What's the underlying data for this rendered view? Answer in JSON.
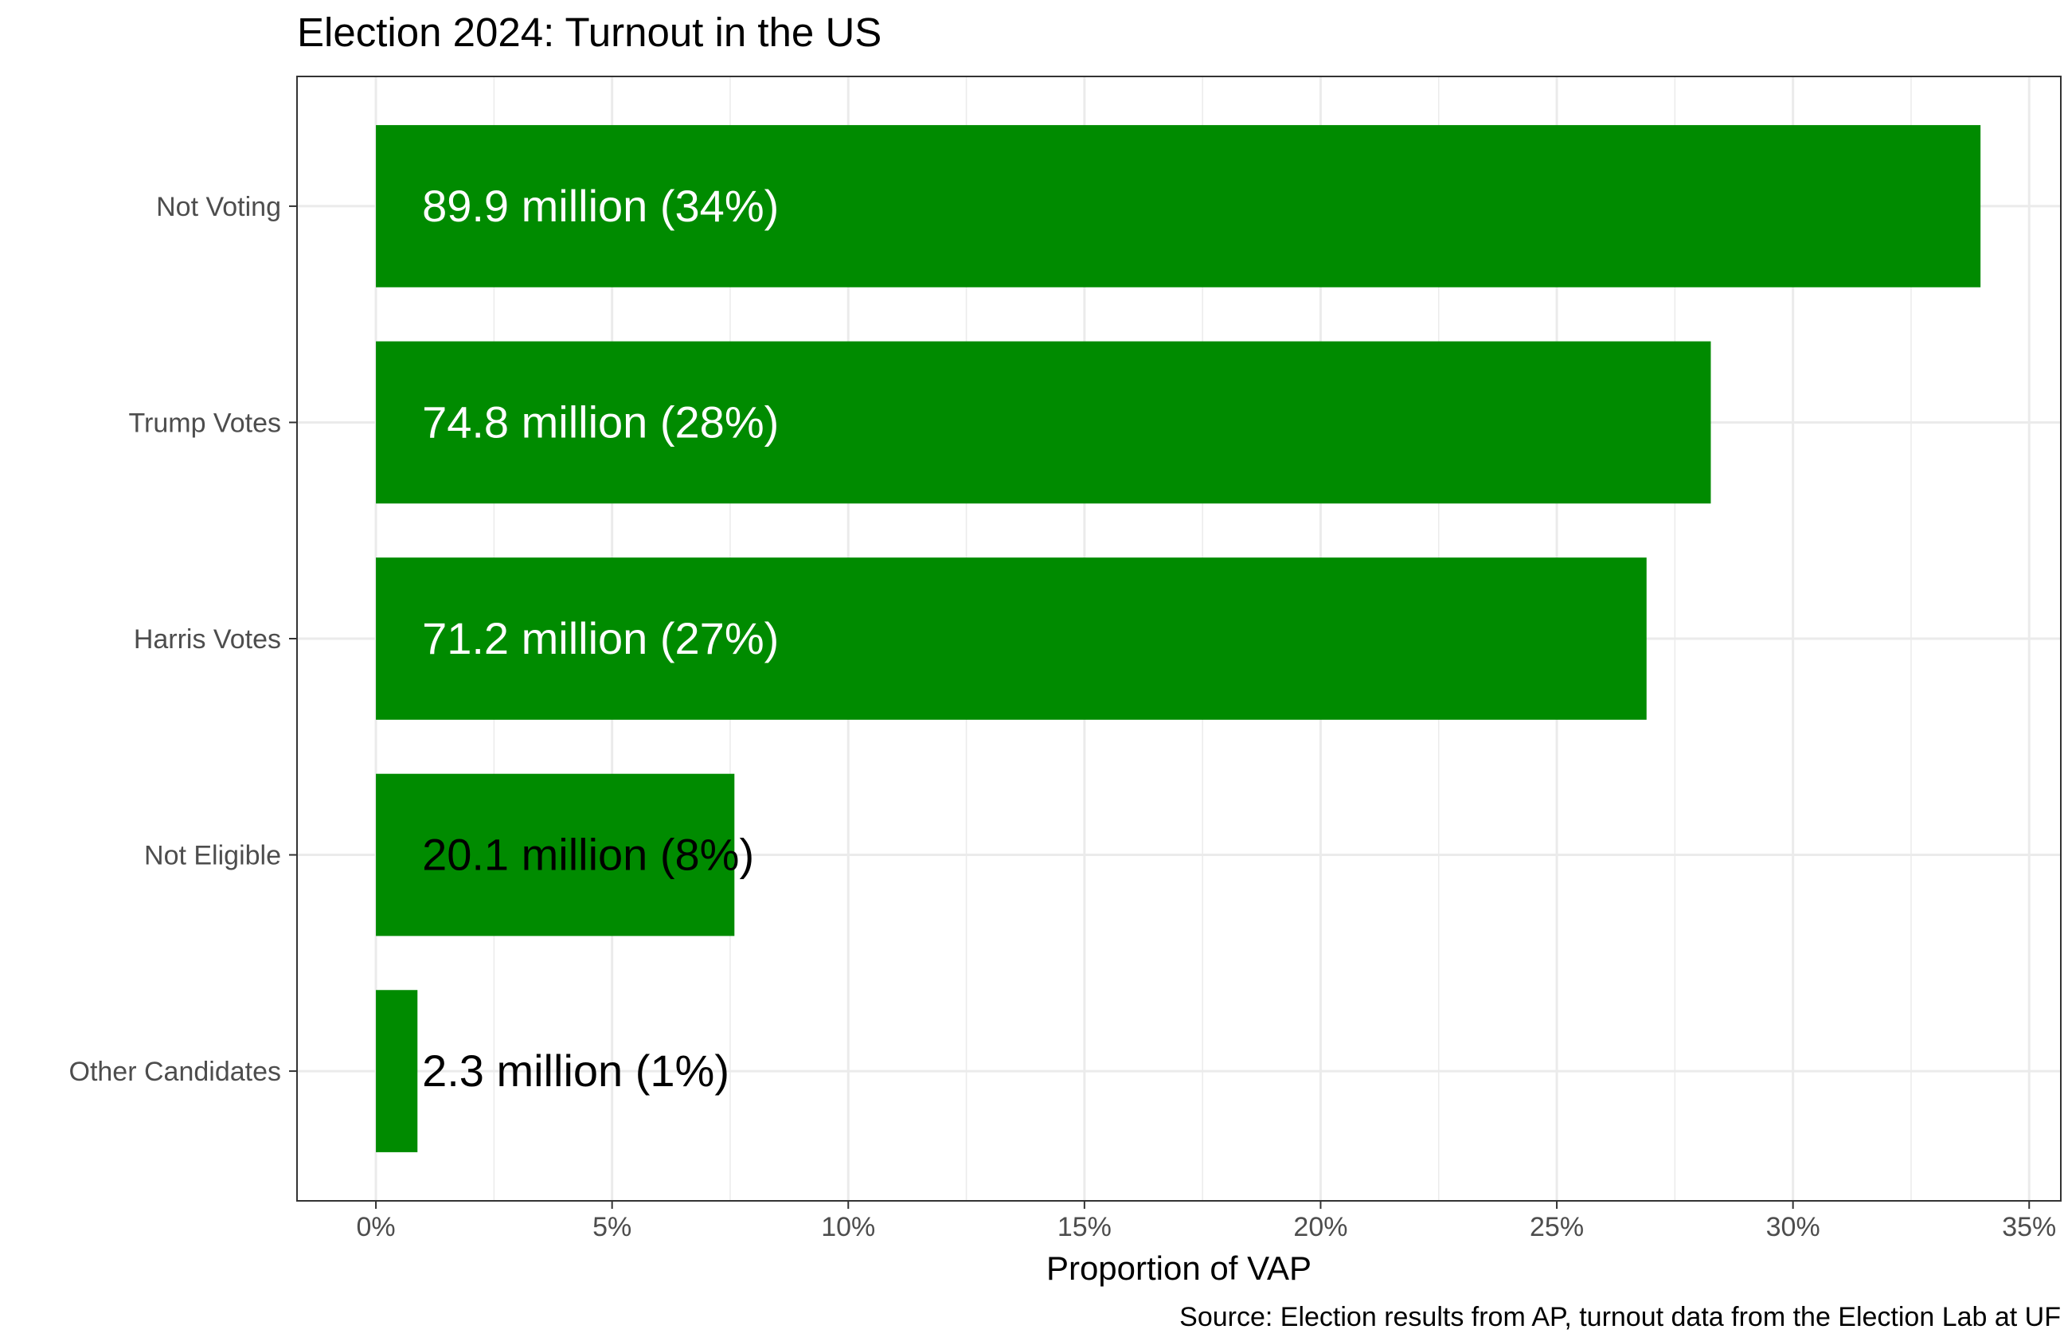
{
  "chart_data": {
    "type": "bar",
    "orientation": "horizontal",
    "title": "Election 2024: Turnout in the US",
    "xlabel": "Proportion of VAP",
    "ylabel": "",
    "caption": "Source: Election results from AP, turnout data from the Election Lab at UF",
    "categories": [
      "Not Voting",
      "Trump Votes",
      "Harris Votes",
      "Not Eligible",
      "Other Candidates"
    ],
    "values": [
      0.3397,
      0.2826,
      0.269,
      0.0759,
      0.0088
    ],
    "labels": [
      "89.9 million (34%)",
      "74.8 million (28%)",
      "71.2 million (27%)",
      "20.1 million (8%)",
      "2.3 million (1%)"
    ],
    "label_colors": [
      "#ffffff",
      "#ffffff",
      "#ffffff",
      "#000000",
      "#000000"
    ],
    "xlim": [
      -0.0167,
      0.3567
    ],
    "x_ticks": [
      0,
      0.05,
      0.1,
      0.15,
      0.2,
      0.25,
      0.3,
      0.35
    ],
    "x_tick_labels": [
      "0%",
      "5%",
      "10%",
      "15%",
      "20%",
      "25%",
      "30%",
      "35%"
    ],
    "bar_color": "#008b00",
    "grid": true,
    "legend": "none"
  }
}
